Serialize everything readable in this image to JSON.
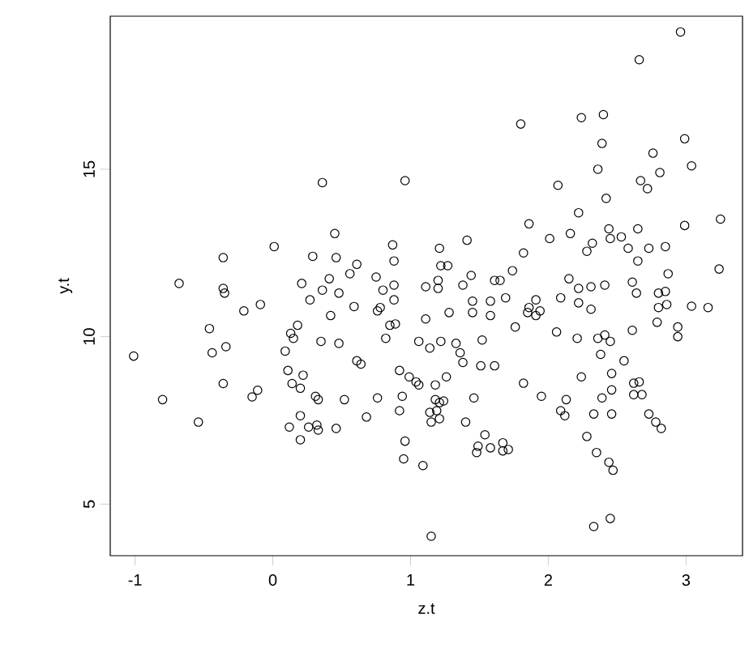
{
  "chart_data": {
    "type": "scatter",
    "xlabel": "z.t",
    "ylabel": "y.t",
    "xlim": [
      -1.18,
      3.41
    ],
    "ylim": [
      3.46,
      19.57
    ],
    "xticks": [
      -1,
      0,
      1,
      2,
      3
    ],
    "yticks": [
      5,
      10,
      15
    ],
    "grid": false,
    "marker": "circle",
    "series": [
      {
        "color": "#000000",
        "x": [
          -1.01,
          -0.8,
          -0.68,
          -0.54,
          -0.44,
          -0.46,
          -0.36,
          -0.35,
          -0.36,
          -0.36,
          -0.34,
          -0.15,
          -0.11,
          -0.21,
          -0.09,
          0.01,
          0.09,
          0.13,
          0.15,
          0.18,
          0.11,
          0.14,
          0.2,
          0.22,
          0.2,
          0.2,
          0.12,
          0.21,
          0.27,
          0.29,
          0.31,
          0.33,
          0.32,
          0.33,
          0.26,
          0.36,
          0.35,
          0.36,
          0.41,
          0.42,
          0.45,
          0.46,
          0.48,
          0.48,
          0.52,
          0.46,
          0.56,
          0.59,
          0.61,
          0.61,
          0.64,
          0.68,
          0.75,
          0.76,
          0.76,
          0.78,
          0.8,
          0.82,
          0.85,
          0.87,
          0.88,
          0.88,
          0.88,
          0.89,
          0.92,
          0.92,
          0.94,
          0.96,
          0.96,
          0.95,
          0.99,
          1.04,
          1.06,
          1.06,
          1.09,
          1.11,
          1.11,
          1.14,
          1.18,
          1.14,
          1.15,
          1.15,
          1.18,
          1.19,
          1.21,
          1.21,
          1.22,
          1.24,
          1.26,
          1.2,
          1.2,
          1.21,
          1.22,
          1.28,
          1.27,
          1.33,
          1.36,
          1.38,
          1.38,
          1.4,
          1.41,
          1.44,
          1.45,
          1.45,
          1.46,
          1.48,
          1.49,
          1.51,
          1.52,
          1.54,
          1.58,
          1.58,
          1.58,
          1.61,
          1.61,
          1.65,
          1.67,
          1.67,
          1.69,
          1.71,
          1.74,
          1.76,
          1.8,
          1.82,
          1.82,
          1.85,
          1.86,
          1.86,
          1.91,
          1.91,
          1.94,
          1.95,
          2.01,
          2.06,
          2.07,
          2.09,
          2.09,
          2.12,
          2.13,
          2.15,
          2.16,
          2.22,
          2.21,
          2.24,
          2.22,
          2.22,
          2.24,
          2.28,
          2.28,
          2.31,
          2.31,
          2.32,
          2.33,
          2.36,
          2.35,
          2.36,
          2.38,
          2.39,
          2.39,
          2.4,
          2.41,
          2.41,
          2.42,
          2.44,
          2.44,
          2.45,
          2.46,
          2.45,
          2.46,
          2.47,
          2.46,
          2.45,
          2.33,
          2.53,
          2.55,
          2.58,
          2.61,
          2.61,
          2.62,
          2.62,
          2.64,
          2.65,
          2.65,
          2.66,
          2.67,
          2.66,
          2.68,
          2.72,
          2.73,
          2.73,
          2.76,
          2.78,
          2.79,
          2.8,
          2.8,
          2.81,
          2.85,
          2.82,
          2.85,
          2.86,
          2.87,
          2.94,
          2.94,
          2.96,
          2.99,
          3.04,
          2.99,
          3.04,
          3.16,
          3.25,
          3.24
        ],
        "values": [
          9.42,
          8.12,
          11.59,
          7.45,
          9.52,
          10.24,
          11.44,
          11.3,
          12.36,
          8.6,
          9.7,
          8.2,
          8.4,
          10.77,
          10.96,
          12.69,
          9.57,
          10.1,
          9.95,
          10.34,
          8.99,
          8.6,
          8.46,
          8.85,
          7.64,
          6.92,
          7.3,
          11.59,
          11.1,
          12.4,
          8.22,
          8.12,
          7.36,
          7.21,
          7.3,
          14.6,
          9.86,
          11.39,
          11.73,
          10.63,
          13.08,
          12.36,
          11.3,
          9.8,
          8.12,
          7.26,
          11.88,
          10.9,
          12.16,
          9.28,
          9.18,
          7.6,
          11.78,
          10.77,
          8.17,
          10.87,
          11.39,
          9.95,
          10.34,
          12.74,
          12.26,
          11.54,
          11.1,
          10.38,
          8.99,
          7.79,
          8.22,
          14.66,
          6.88,
          6.35,
          8.8,
          8.65,
          9.86,
          8.56,
          6.15,
          11.49,
          10.53,
          9.66,
          8.56,
          7.74,
          7.45,
          4.04,
          8.12,
          7.79,
          8.03,
          7.55,
          9.86,
          8.08,
          8.8,
          11.68,
          11.44,
          12.64,
          12.12,
          10.72,
          12.12,
          9.8,
          9.52,
          9.23,
          11.54,
          7.45,
          12.88,
          11.83,
          11.06,
          10.72,
          8.17,
          6.54,
          6.73,
          9.13,
          9.9,
          7.07,
          6.68,
          11.06,
          10.63,
          11.68,
          9.13,
          11.68,
          6.83,
          6.59,
          11.16,
          6.63,
          11.97,
          10.29,
          16.35,
          12.5,
          8.61,
          10.72,
          10.87,
          13.37,
          11.1,
          10.63,
          10.77,
          8.22,
          12.93,
          10.14,
          14.52,
          11.16,
          7.79,
          7.64,
          8.12,
          11.73,
          13.08,
          13.7,
          9.95,
          16.54,
          11.44,
          11.01,
          8.8,
          7.02,
          12.55,
          10.82,
          11.49,
          12.79,
          7.69,
          9.95,
          6.54,
          15.0,
          9.47,
          15.77,
          8.17,
          16.63,
          11.54,
          10.05,
          14.13,
          13.22,
          6.25,
          9.86,
          8.9,
          12.93,
          7.69,
          6.01,
          8.41,
          4.57,
          4.33,
          12.98,
          9.28,
          12.64,
          11.63,
          10.19,
          8.27,
          8.61,
          11.3,
          12.26,
          13.22,
          18.27,
          14.66,
          8.65,
          8.27,
          14.42,
          12.64,
          7.69,
          15.48,
          7.45,
          10.43,
          10.87,
          11.3,
          14.9,
          11.35,
          7.26,
          12.69,
          10.96,
          11.88,
          10.0,
          10.29,
          19.1,
          15.91,
          15.1,
          13.32,
          10.91,
          10.87,
          13.51,
          12.02
        ]
      }
    ]
  }
}
